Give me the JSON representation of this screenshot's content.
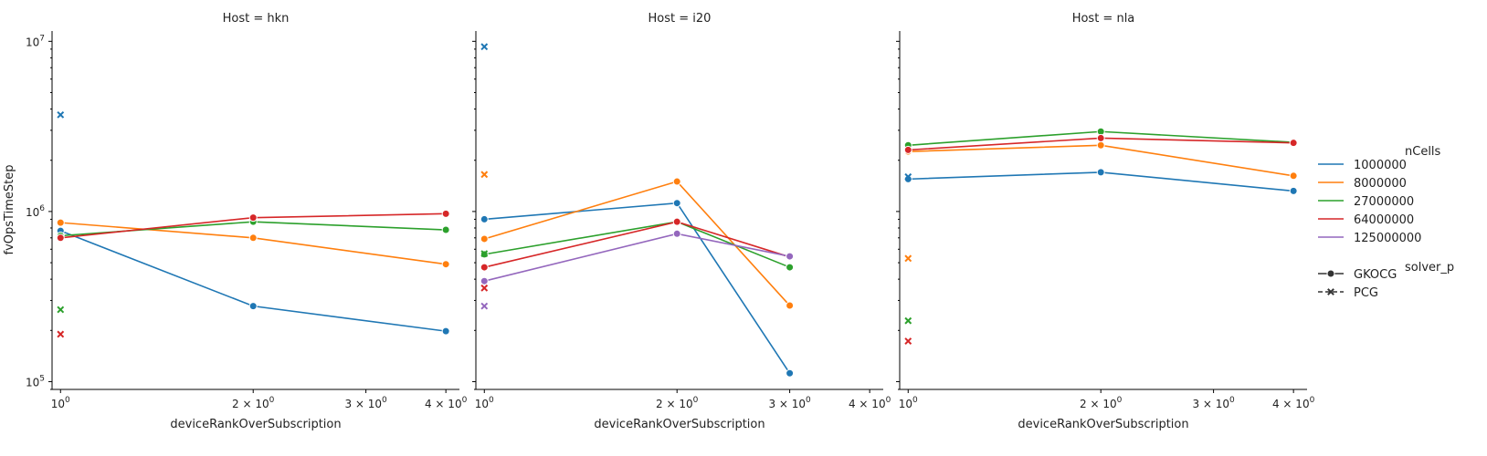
{
  "chart_data": {
    "type": "line",
    "ylabel": "fvOpsTimeStep",
    "xlabel": "deviceRankOverSubscription",
    "xscale": "log",
    "yscale": "log",
    "xlim": [
      0.97,
      4.2
    ],
    "ylim": [
      90000,
      11500000
    ],
    "xticks": [
      {
        "value": 1,
        "base": "10",
        "exp": "0"
      },
      {
        "value": 2,
        "base": "2 × 10",
        "exp": "0"
      },
      {
        "value": 3,
        "base": "3 × 10",
        "exp": "0"
      },
      {
        "value": 4,
        "base": "4 × 10",
        "exp": "0"
      }
    ],
    "yticks": [
      {
        "value": 100000,
        "base": "10",
        "exp": "5"
      },
      {
        "value": 1000000,
        "base": "10",
        "exp": "6"
      },
      {
        "value": 10000000,
        "base": "10",
        "exp": "7"
      }
    ],
    "grid": false,
    "legend_position": "right",
    "legend": {
      "hue_title": "nCells",
      "hue_entries": [
        {
          "label": "1000000",
          "color": "#1f77b4"
        },
        {
          "label": "8000000",
          "color": "#ff7f0e"
        },
        {
          "label": "27000000",
          "color": "#2ca02c"
        },
        {
          "label": "64000000",
          "color": "#d62728"
        },
        {
          "label": "125000000",
          "color": "#9467bd"
        }
      ],
      "style_title": "solver_p",
      "style_entries": [
        {
          "label": "GKOCG",
          "marker": "circle"
        },
        {
          "label": "PCG",
          "marker": "x"
        }
      ]
    },
    "panels": [
      {
        "title": "Host = hkn",
        "series": [
          {
            "ncells": "1000000",
            "solver": "GKOCG",
            "x": [
              1,
              2,
              4
            ],
            "y": [
              770000,
              278000,
              198000
            ]
          },
          {
            "ncells": "8000000",
            "solver": "GKOCG",
            "x": [
              1,
              2,
              4
            ],
            "y": [
              860000,
              700000,
              490000
            ]
          },
          {
            "ncells": "27000000",
            "solver": "GKOCG",
            "x": [
              1,
              2,
              4
            ],
            "y": [
              720000,
              870000,
              780000
            ]
          },
          {
            "ncells": "64000000",
            "solver": "GKOCG",
            "x": [
              1,
              2,
              4
            ],
            "y": [
              700000,
              920000,
              970000
            ]
          },
          {
            "ncells": "1000000",
            "solver": "PCG",
            "x": [
              1
            ],
            "y": [
              3700000
            ]
          },
          {
            "ncells": "27000000",
            "solver": "PCG",
            "x": [
              1
            ],
            "y": [
              265000
            ]
          },
          {
            "ncells": "64000000",
            "solver": "PCG",
            "x": [
              1
            ],
            "y": [
              190000
            ]
          }
        ]
      },
      {
        "title": "Host = i20",
        "series": [
          {
            "ncells": "1000000",
            "solver": "GKOCG",
            "x": [
              1,
              2,
              3
            ],
            "y": [
              900000,
              1120000,
              112000
            ]
          },
          {
            "ncells": "8000000",
            "solver": "GKOCG",
            "x": [
              1,
              2,
              3
            ],
            "y": [
              690000,
              1500000,
              280000
            ]
          },
          {
            "ncells": "27000000",
            "solver": "GKOCG",
            "x": [
              1,
              2,
              3
            ],
            "y": [
              560000,
              870000,
              470000
            ]
          },
          {
            "ncells": "64000000",
            "solver": "GKOCG",
            "x": [
              1,
              2,
              3
            ],
            "y": [
              470000,
              870000,
              540000
            ]
          },
          {
            "ncells": "125000000",
            "solver": "GKOCG",
            "x": [
              1,
              2,
              3
            ],
            "y": [
              390000,
              740000,
              545000
            ]
          },
          {
            "ncells": "1000000",
            "solver": "PCG",
            "x": [
              1
            ],
            "y": [
              9300000
            ]
          },
          {
            "ncells": "8000000",
            "solver": "PCG",
            "x": [
              1
            ],
            "y": [
              1650000
            ]
          },
          {
            "ncells": "27000000",
            "solver": "PCG",
            "x": [
              1
            ],
            "y": [
              565000
            ]
          },
          {
            "ncells": "64000000",
            "solver": "PCG",
            "x": [
              1
            ],
            "y": [
              355000
            ]
          },
          {
            "ncells": "125000000",
            "solver": "PCG",
            "x": [
              1
            ],
            "y": [
              278000
            ]
          }
        ]
      },
      {
        "title": "Host = nla",
        "series": [
          {
            "ncells": "1000000",
            "solver": "GKOCG",
            "x": [
              1,
              2,
              4
            ],
            "y": [
              1550000,
              1700000,
              1320000
            ]
          },
          {
            "ncells": "8000000",
            "solver": "GKOCG",
            "x": [
              1,
              2,
              4
            ],
            "y": [
              2250000,
              2450000,
              1620000
            ]
          },
          {
            "ncells": "27000000",
            "solver": "GKOCG",
            "x": [
              1,
              2,
              4
            ],
            "y": [
              2450000,
              2950000,
              2550000
            ]
          },
          {
            "ncells": "64000000",
            "solver": "GKOCG",
            "x": [
              1,
              2,
              4
            ],
            "y": [
              2300000,
              2700000,
              2530000
            ]
          },
          {
            "ncells": "1000000",
            "solver": "PCG",
            "x": [
              1
            ],
            "y": [
              1600000
            ]
          },
          {
            "ncells": "8000000",
            "solver": "PCG",
            "x": [
              1
            ],
            "y": [
              530000
            ]
          },
          {
            "ncells": "27000000",
            "solver": "PCG",
            "x": [
              1
            ],
            "y": [
              228000
            ]
          },
          {
            "ncells": "64000000",
            "solver": "PCG",
            "x": [
              1
            ],
            "y": [
              173000
            ]
          }
        ]
      }
    ]
  }
}
